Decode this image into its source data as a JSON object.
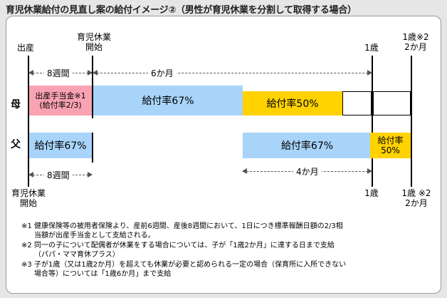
{
  "title": "育児休業給付の見直し案の給付イメージ②（男性が育児休業を分割して取得する場合）",
  "milestones": {
    "birth": "出産",
    "leave_start_line1": "育児休業",
    "leave_start_line2": "開始",
    "one_year": "1歳",
    "one_year_two_months_line1": "1歳※2",
    "one_year_two_months_line2": "2か月",
    "father_start_line1": "育児休業",
    "father_start_line2": "開始",
    "bottom_one_year": "1歳",
    "bottom_one_year_two_months_line1": "1歳 ※2",
    "bottom_one_year_two_months_line2": "2か月"
  },
  "durations": {
    "eight_weeks_top": "8週間",
    "six_months": "6か月",
    "eight_weeks_bottom": "8週間",
    "four_months": "4か月"
  },
  "rows": {
    "mother": "母",
    "father": "父"
  },
  "bars": {
    "maternity_line1": "出産手当金※1",
    "maternity_line2": "(給付率2/3)",
    "mother_67": "給付率67%",
    "mother_50": "給付率50%",
    "father_67_a": "給付率67%",
    "father_67_b": "給付率67%",
    "father_50_line1": "給付率",
    "father_50_line2": "50%"
  },
  "notes": [
    {
      "mark": "※1",
      "line1": "健康保険等の被用者保険より、産前6週間、産後8週間において、1日につき標準報酬日額の2/3相",
      "line2": "当額が出産手当金として支給される。"
    },
    {
      "mark": "※2",
      "line1": "同一の子について配偶者が休業をする場合については、子が「1歳2か月」に達する日まで支給",
      "line2": "（パパ・ママ育休プラス）"
    },
    {
      "mark": "※3",
      "line1": "子が1歳（又は1歳2か月）を超えても休業が必要と認められる一定の場合（保育所に入所できない",
      "line2": "場合等）については「1歳6か月」まで支給"
    }
  ],
  "colors": {
    "maternity": "#f9a3b2",
    "rate67": "#a8d4fa",
    "rate50": "#ffd200",
    "background": "#e6e6e6"
  }
}
